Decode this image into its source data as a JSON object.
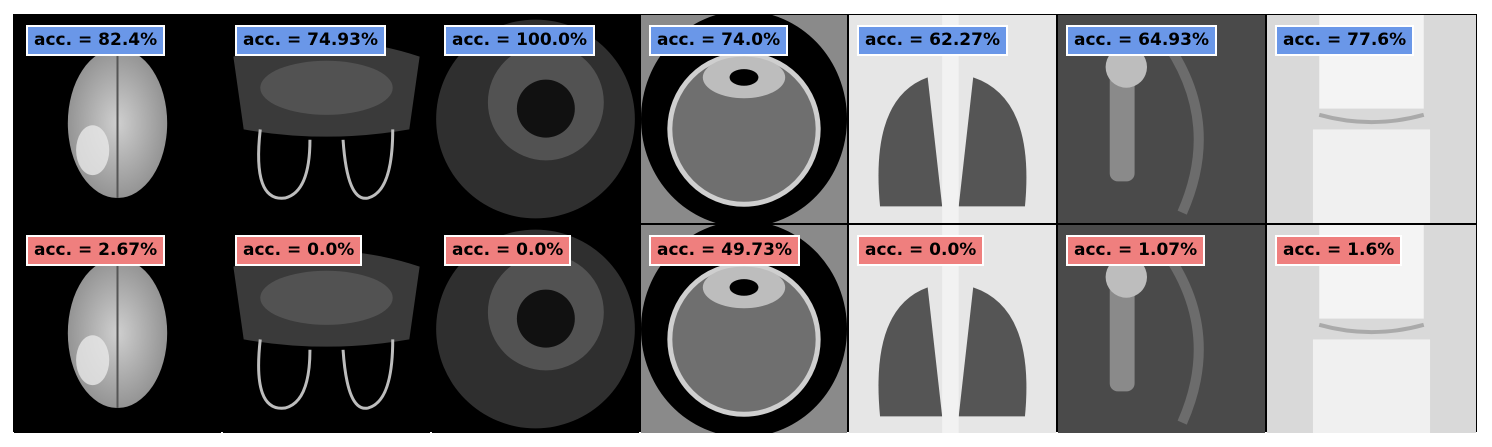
{
  "colors": {
    "top_badge": "#6a97e8",
    "bottom_badge": "#ef7f7e"
  },
  "rows": [
    {
      "row": "top",
      "panels": [
        {
          "label": "acc. = 82.4%",
          "image": "brain-mri"
        },
        {
          "label": "acc. = 74.93%",
          "image": "breast-mri"
        },
        {
          "label": "acc. = 100.0%",
          "image": "ultrasound"
        },
        {
          "label": "acc. = 74.0%",
          "image": "head-ct"
        },
        {
          "label": "acc. = 62.27%",
          "image": "chest-xray"
        },
        {
          "label": "acc. = 64.93%",
          "image": "shoulder-xray"
        },
        {
          "label": "acc. = 77.6%",
          "image": "knee-xray"
        }
      ]
    },
    {
      "row": "bottom",
      "panels": [
        {
          "label": "acc. = 2.67%",
          "image": "brain-mri"
        },
        {
          "label": "acc. = 0.0%",
          "image": "breast-mri"
        },
        {
          "label": "acc. = 0.0%",
          "image": "ultrasound"
        },
        {
          "label": "acc. = 49.73%",
          "image": "head-ct"
        },
        {
          "label": "acc. = 0.0%",
          "image": "chest-xray"
        },
        {
          "label": "acc. = 1.07%",
          "image": "shoulder-xray"
        },
        {
          "label": "acc. = 1.6%",
          "image": "knee-xray"
        }
      ]
    }
  ]
}
